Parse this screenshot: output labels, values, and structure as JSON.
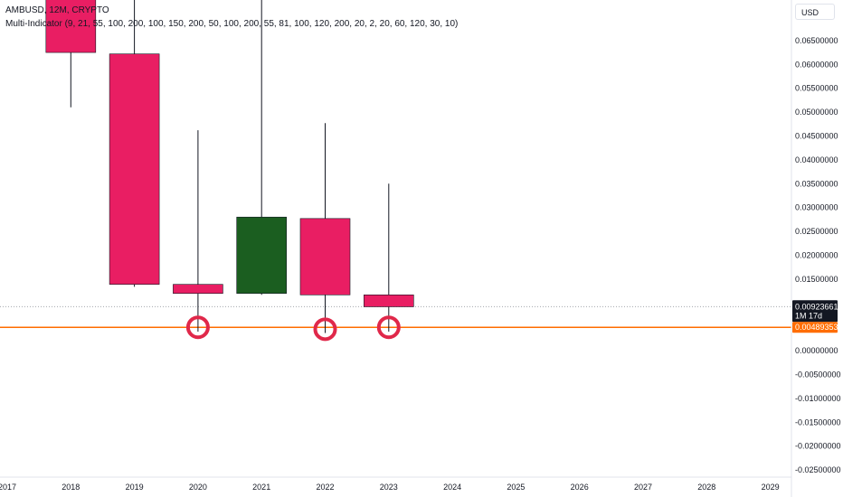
{
  "legend": {
    "symbol_line": "AMBUSD, 12M, CRYPTO",
    "indicator_line": "Multi-Indicator (9, 21, 55, 100, 200, 100, 150, 200, 50, 100, 200, 55, 81, 100, 120, 200, 20, 2, 20, 60, 120, 30, 10)"
  },
  "currency_button": "USD",
  "chart_data": {
    "type": "candlestick",
    "x_tick_labels": [
      "2017",
      "2018",
      "2019",
      "2020",
      "2021",
      "2022",
      "2023",
      "2024",
      "2025",
      "2026",
      "2027",
      "2028",
      "2029"
    ],
    "y_tick_labels": [
      "0.06500000",
      "0.06000000",
      "0.05500000",
      "0.05000000",
      "0.04500000",
      "0.04000000",
      "0.03500000",
      "0.03000000",
      "0.02500000",
      "0.02000000",
      "0.01500000",
      "0.00000000",
      "-0.00500000",
      "-0.01000000",
      "-0.01500000",
      "-0.02000000",
      "-0.02500000"
    ],
    "ylim": [
      -0.0265,
      0.0735
    ],
    "candles": [
      {
        "year": "2018",
        "open": 0.077,
        "high": 0.078,
        "low": 0.051,
        "close": 0.0625,
        "direction": "down"
      },
      {
        "year": "2019",
        "open": 0.0622,
        "high": 0.076,
        "low": 0.0134,
        "close": 0.0139,
        "direction": "down"
      },
      {
        "year": "2020",
        "open": 0.0139,
        "high": 0.0462,
        "low": 0.004,
        "close": 0.012,
        "direction": "down"
      },
      {
        "year": "2021",
        "open": 0.012,
        "high": 0.076,
        "low": 0.0117,
        "close": 0.028,
        "direction": "up"
      },
      {
        "year": "2022",
        "open": 0.0277,
        "high": 0.0477,
        "low": 0.0037,
        "close": 0.0117,
        "direction": "down"
      },
      {
        "year": "2023",
        "open": 0.0117,
        "high": 0.035,
        "low": 0.004,
        "close": 0.0092,
        "direction": "down"
      }
    ],
    "markers": [
      {
        "year": "2020",
        "value": 0.0049
      },
      {
        "year": "2022",
        "value": 0.0045
      },
      {
        "year": "2023",
        "value": 0.0049
      }
    ],
    "horizontal_line": {
      "value": 0.00489353,
      "label": "0.00489353",
      "color": "#ff6d00"
    },
    "current_price": {
      "value": 0.00923661,
      "label": "0.00923661",
      "countdown": "1M 17d"
    },
    "colors": {
      "up": "#1b5e20",
      "down": "#e91e63",
      "marker": "#e0284a",
      "wick": "#131722"
    }
  }
}
